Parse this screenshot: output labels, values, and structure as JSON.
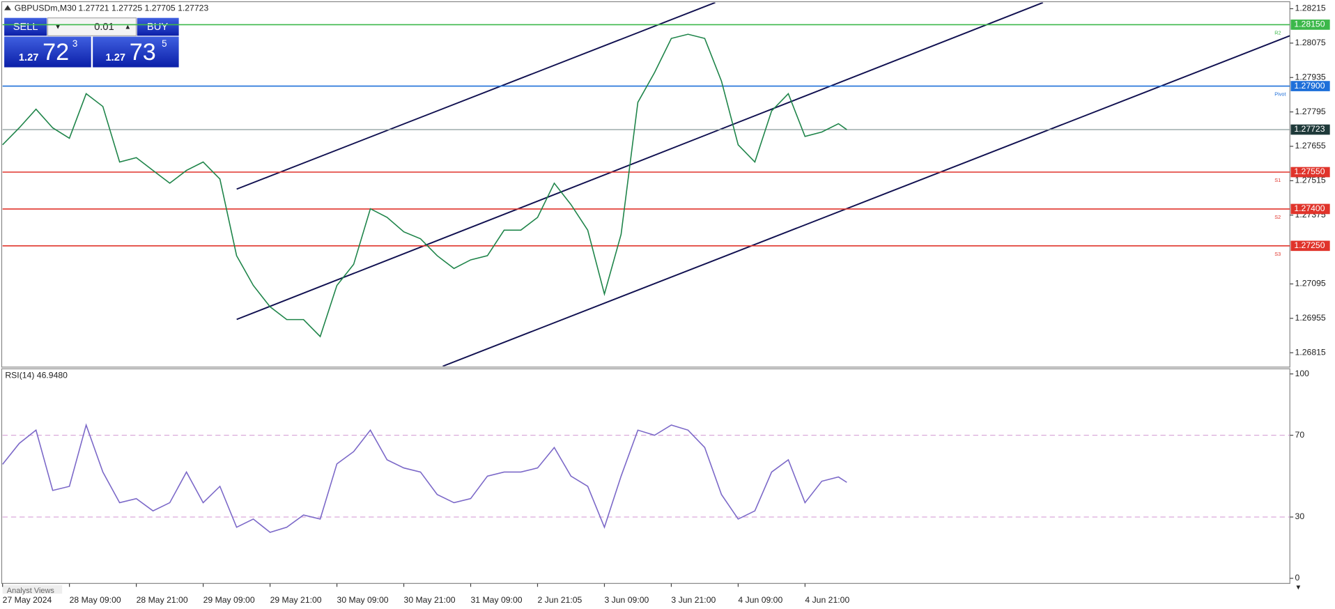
{
  "header": {
    "symbol": "GBPUSDm,M30",
    "quote": "1.27721 1.27725 1.27705 1.27723"
  },
  "trade_panel": {
    "sell": "SELL",
    "buy": "BUY",
    "lot": "0.01",
    "bid": {
      "big": "1.27",
      "pips": "72",
      "point": "3"
    },
    "ask": {
      "big": "1.27",
      "pips": "73",
      "point": "5"
    }
  },
  "tab": "Analyst Views",
  "chart_data": [
    {
      "type": "line",
      "color": "#1e8449",
      "x": [
        0,
        6,
        12,
        18,
        24,
        30,
        36,
        42,
        48,
        54,
        60,
        66,
        72,
        78,
        84,
        90,
        96,
        102,
        108,
        114,
        120,
        126,
        132,
        138,
        144,
        150,
        156,
        162,
        168,
        174,
        180,
        186,
        192,
        198,
        204,
        210,
        216,
        222,
        228,
        234,
        240,
        246,
        252,
        258,
        264,
        270,
        276,
        282,
        288,
        294,
        300,
        303
      ],
      "values": [
        1.27661,
        1.2773,
        1.27806,
        1.2773,
        1.27688,
        1.27869,
        1.27817,
        1.27591,
        1.27609,
        1.27557,
        1.27505,
        1.27557,
        1.27591,
        1.27522,
        1.2721,
        1.27089,
        1.27002,
        1.2695,
        1.2695,
        1.26881,
        1.27089,
        1.27175,
        1.27401,
        1.27366,
        1.27307,
        1.27279,
        1.2721,
        1.27158,
        1.27193,
        1.2721,
        1.27314,
        1.27314,
        1.27366,
        1.27505,
        1.27418,
        1.27314,
        1.27054,
        1.27297,
        1.27834,
        1.27955,
        1.28094,
        1.28111,
        1.28094,
        1.2792,
        1.27661,
        1.27591,
        1.27799,
        1.27869,
        1.27695,
        1.27713,
        1.27747,
        1.27723
      ],
      "xlim": [
        0,
        462
      ],
      "ylim": [
        1.2676,
        1.2824
      ],
      "yticks": [
        1.26815,
        1.26955,
        1.27095,
        1.27375,
        1.27515,
        1.27655,
        1.27795,
        1.27935,
        1.28075,
        1.28215
      ],
      "current_price": {
        "value": 1.27723,
        "label": "1.27723"
      },
      "levels": [
        {
          "name": "R2",
          "value": 1.2815,
          "label": "1.28150",
          "color": "#3cb84a"
        },
        {
          "name": "Pivot",
          "value": 1.279,
          "label": "1.27900",
          "color": "#1e6fd9"
        },
        {
          "name": "S1",
          "value": 1.2755,
          "label": "1.27550",
          "color": "#e0342b"
        },
        {
          "name": "S2",
          "value": 1.274,
          "label": "1.27400",
          "color": "#e0342b"
        },
        {
          "name": "S3",
          "value": 1.2725,
          "label": "1.27250",
          "color": "#e0342b"
        }
      ]
    },
    {
      "type": "line",
      "title": "RSI(14) 46.9480",
      "color": "#7b68c8",
      "x": [
        0,
        6,
        12,
        18,
        24,
        30,
        36,
        42,
        48,
        54,
        60,
        66,
        72,
        78,
        84,
        90,
        96,
        102,
        108,
        114,
        120,
        126,
        132,
        138,
        144,
        150,
        156,
        162,
        168,
        174,
        180,
        186,
        192,
        198,
        204,
        210,
        216,
        222,
        228,
        234,
        240,
        246,
        252,
        258,
        264,
        270,
        276,
        282,
        288,
        294,
        300,
        303
      ],
      "values": [
        55.8,
        66,
        72.5,
        43,
        45,
        75,
        52,
        37,
        39,
        33,
        37,
        52,
        37,
        45,
        25,
        29,
        22.5,
        25,
        31,
        29,
        56,
        62,
        72.5,
        58,
        54,
        52,
        41,
        37,
        39,
        50,
        52,
        52,
        54,
        64,
        50,
        45,
        25,
        50,
        72.5,
        70,
        75,
        72.5,
        64,
        41,
        29,
        33,
        52,
        58,
        37,
        47.5,
        49.6,
        46.948
      ],
      "xlim": [
        0,
        462
      ],
      "ylim": [
        0,
        100
      ],
      "yticks": [
        0,
        30,
        70,
        100
      ],
      "xticks": [
        {
          "value": 0,
          "label": "27 May 2024"
        },
        {
          "value": 24,
          "label": "28 May 09:00"
        },
        {
          "value": 48,
          "label": "28 May 21:00"
        },
        {
          "value": 72,
          "label": "29 May 09:00"
        },
        {
          "value": 96,
          "label": "29 May 21:00"
        },
        {
          "value": 120,
          "label": "30 May 09:00"
        },
        {
          "value": 144,
          "label": "30 May 21:00"
        },
        {
          "value": 168,
          "label": "31 May 09:00"
        },
        {
          "value": 192,
          "label": "2 Jun 21:05"
        },
        {
          "value": 216,
          "label": "3 Jun 09:00"
        },
        {
          "value": 240,
          "label": "3 Jun 21:00"
        },
        {
          "value": 264,
          "label": "4 Jun 09:00"
        },
        {
          "value": 288,
          "label": "4 Jun 21:00"
        }
      ]
    }
  ]
}
